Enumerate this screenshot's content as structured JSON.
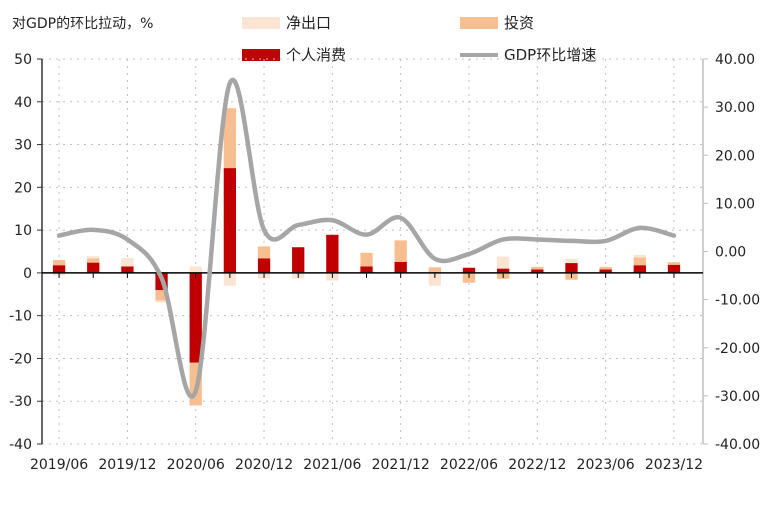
{
  "chart_data": {
    "type": "bar",
    "title": "对GDP的环比拉动，%",
    "colors": {
      "net_exports": "#fbe4d2",
      "investment": "#f7bf8f",
      "consumption": "#c00000",
      "gdp_line": "#a6a6a6",
      "grid": "#bfbfbf",
      "axis": "#333333"
    },
    "legend": [
      "净出口",
      "投资",
      "个人消费",
      "GDP环比增速"
    ],
    "legend_position": "top",
    "grid": true,
    "categories": [
      "2019Q2",
      "2019Q3",
      "2019Q4",
      "2020Q1",
      "2020Q2",
      "2020Q3",
      "2020Q4",
      "2021Q1",
      "2021Q2",
      "2021Q3",
      "2021Q4",
      "2022Q1",
      "2022Q2",
      "2022Q3",
      "2022Q4",
      "2023Q1",
      "2023Q2",
      "2023Q3",
      "2023Q4"
    ],
    "x_tick_labels": [
      "2019/06",
      "2019/12",
      "2020/06",
      "2020/12",
      "2021/06",
      "2021/12",
      "2022/06",
      "2022/12",
      "2023/06",
      "2023/12"
    ],
    "y_left": {
      "lim": [
        -40,
        50
      ],
      "ticks": [
        "50",
        "40",
        "30",
        "20",
        "10",
        "0",
        "-10",
        "-20",
        "-30",
        "-40"
      ]
    },
    "y_right": {
      "lim": [
        -40,
        40
      ],
      "ticks": [
        "40.00",
        "30.00",
        "20.00",
        "10.00",
        "0.00",
        "-10.00",
        "-20.00",
        "-30.00",
        "-40.00"
      ]
    },
    "series": [
      {
        "name": "个人消费",
        "axis": "left",
        "values": [
          1.8,
          2.4,
          1.5,
          -4.0,
          -21.0,
          24.5,
          3.4,
          6.0,
          8.9,
          1.5,
          2.6,
          0.0,
          1.2,
          1.0,
          0.8,
          2.3,
          0.8,
          1.8,
          1.9
        ]
      },
      {
        "name": "投资",
        "axis": "left",
        "values": [
          1.2,
          1.0,
          0.0,
          -2.5,
          -10.0,
          14.0,
          2.8,
          0.0,
          0.0,
          3.2,
          5.0,
          1.3,
          -2.3,
          -1.4,
          0.6,
          -1.6,
          0.6,
          1.8,
          0.6
        ]
      },
      {
        "name": "净出口",
        "axis": "left",
        "values": [
          -0.6,
          0.5,
          2.0,
          -0.4,
          1.5,
          -3.0,
          -1.3,
          -1.3,
          -1.8,
          0.0,
          0.0,
          -3.0,
          0.0,
          2.8,
          0.0,
          1.0,
          0.0,
          0.6,
          0.0
        ]
      },
      {
        "name": "GDP环比增速",
        "axis": "right",
        "values": [
          3.3,
          4.5,
          2.5,
          -5.5,
          -29.0,
          35.0,
          4.5,
          5.5,
          6.5,
          3.5,
          7.0,
          -1.5,
          -0.5,
          2.5,
          2.5,
          2.2,
          2.2,
          4.9,
          3.3
        ]
      }
    ]
  }
}
